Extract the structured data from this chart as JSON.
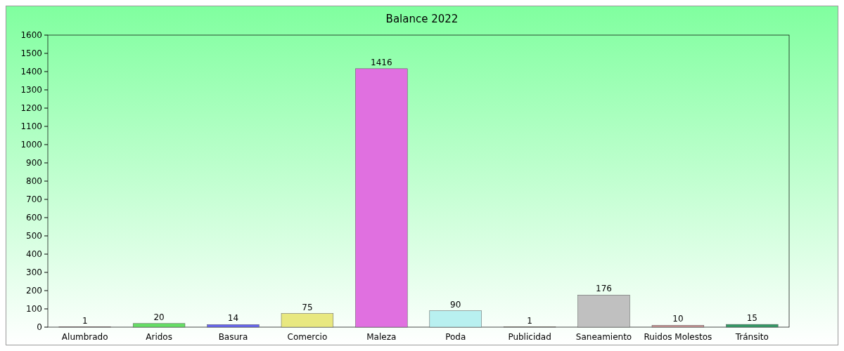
{
  "chart_data": {
    "type": "bar",
    "title": "Balance 2022",
    "categories": [
      "Alumbrado",
      "Aridos",
      "Basura",
      "Comercio",
      "Maleza",
      "Poda",
      "Publicidad",
      "Saneamiento",
      "Ruidos Molestos",
      "Tránsito"
    ],
    "values": [
      1,
      20,
      14,
      75,
      1416,
      90,
      1,
      176,
      10,
      15
    ],
    "colors": [
      "#ff6666",
      "#66dd66",
      "#6666ee",
      "#e8e880",
      "#e070e0",
      "#b8f0f0",
      "#ffcc66",
      "#c0c0c0",
      "#c89494",
      "#339966"
    ],
    "ylim": [
      0,
      1600
    ],
    "yticks": [
      0,
      100,
      200,
      300,
      400,
      500,
      600,
      700,
      800,
      900,
      1000,
      1100,
      1200,
      1300,
      1400,
      1500,
      1600
    ],
    "data_labels": true
  }
}
